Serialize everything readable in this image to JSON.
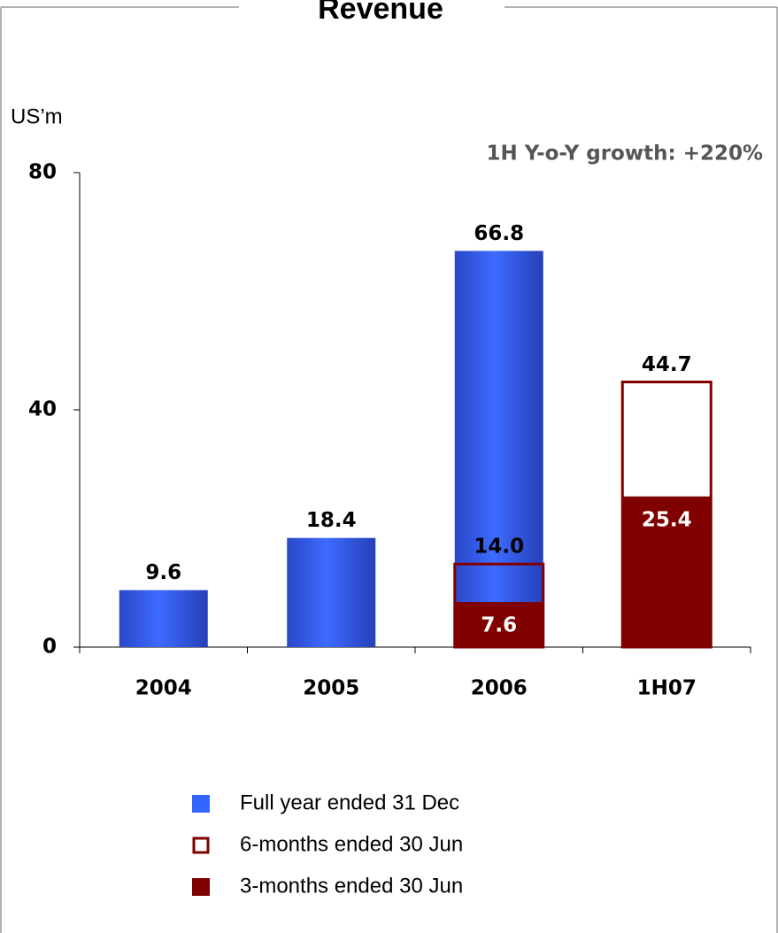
{
  "chart_data": {
    "type": "bar",
    "title": "Revenue",
    "y_label": "US’m",
    "annotation": "1H Y-o-Y growth: +220%",
    "categories": [
      "2004",
      "2005",
      "2006",
      "1H07"
    ],
    "series": [
      {
        "name": "Full year ended 31 Dec",
        "color": "#3366ff",
        "values": [
          9.6,
          18.4,
          66.8,
          null
        ]
      },
      {
        "name": "6-months ended 30 Jun",
        "color": "#800000",
        "values": [
          null,
          null,
          14.0,
          44.7
        ],
        "value_labels": [
          null,
          null,
          "14.0",
          "44.7"
        ],
        "outline": true
      },
      {
        "name": "3-months ended 30 Jun",
        "color": "#800000",
        "values": [
          null,
          null,
          7.6,
          25.4
        ]
      }
    ],
    "ylim": [
      0,
      80
    ],
    "yticks": [
      0,
      40,
      80
    ],
    "grid": false
  }
}
